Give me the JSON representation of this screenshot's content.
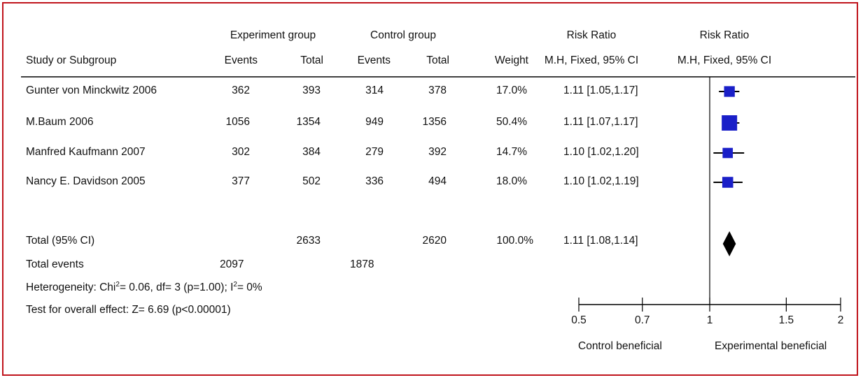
{
  "header": {
    "group1": "Experiment group",
    "group2": "Control group",
    "rr_text_title": "Risk Ratio",
    "rr_plot_title": "Risk Ratio",
    "col_study": "Study or Subgroup",
    "col_events1": "Events",
    "col_total1": "Total",
    "col_events2": "Events",
    "col_total2": "Total",
    "col_weight": "Weight",
    "col_method_text": "M.H, Fixed, 95% CI",
    "col_method_plot": "M.H, Fixed, 95% CI"
  },
  "studies": [
    {
      "name": "Gunter von Minckwitz 2006",
      "events1": "362",
      "total1": "393",
      "events2": "314",
      "total2": "378",
      "weight": "17.0%",
      "ci": "1.11 [1.05,1.17]"
    },
    {
      "name": "M.Baum 2006",
      "events1": "1056",
      "total1": "1354",
      "events2": "949",
      "total2": "1356",
      "weight": "50.4%",
      "ci": "1.11 [1.07,1.17]"
    },
    {
      "name": "Manfred Kaufmann 2007",
      "events1": "302",
      "total1": "384",
      "events2": "279",
      "total2": "392",
      "weight": "14.7%",
      "ci": "1.10 [1.02,1.20]"
    },
    {
      "name": "Nancy E. Davidson 2005",
      "events1": "377",
      "total1": "502",
      "events2": "336",
      "total2": "494",
      "weight": "18.0%",
      "ci": "1.10 [1.02,1.19]"
    }
  ],
  "total": {
    "label": "Total (95% CI)",
    "total1": "2633",
    "total2": "2620",
    "weight": "100.0%",
    "ci": "1.11 [1.08,1.14]"
  },
  "total_events": {
    "label": "Total events",
    "events1": "2097",
    "events2": "1878"
  },
  "heterogeneity": {
    "prefix": "Heterogeneity: Chi",
    "chi_sup": "2",
    "middle": "= 0.06, df= 3 (p=1.00); I",
    "i_sup": "2",
    "suffix": "= 0%"
  },
  "overall_effect": "Test for overall effect: Z= 6.69 (p<0.00001)",
  "axis": {
    "left_label": "Control beneficial",
    "right_label": "Experimental beneficial"
  },
  "colors": {
    "frame": "#c0141c",
    "marker": "#1a1fc8",
    "line": "#000000"
  },
  "chart_data": {
    "type": "forest",
    "scale": "log",
    "xlim": [
      0.5,
      2
    ],
    "reference": 1,
    "ticks": [
      0.5,
      0.7,
      1,
      1.5,
      2
    ],
    "tick_labels": [
      "0.5",
      "0.7",
      "1",
      "1.5",
      "2"
    ],
    "studies": [
      {
        "name": "Gunter von Minckwitz 2006",
        "rr": 1.11,
        "lo": 1.05,
        "hi": 1.17,
        "weight": 17.0
      },
      {
        "name": "M.Baum 2006",
        "rr": 1.11,
        "lo": 1.07,
        "hi": 1.17,
        "weight": 50.4
      },
      {
        "name": "Manfred Kaufmann 2007",
        "rr": 1.1,
        "lo": 1.02,
        "hi": 1.2,
        "weight": 14.7
      },
      {
        "name": "Nancy E. Davidson 2005",
        "rr": 1.1,
        "lo": 1.02,
        "hi": 1.19,
        "weight": 18.0
      }
    ],
    "pooled": {
      "rr": 1.11,
      "lo": 1.08,
      "hi": 1.14
    }
  }
}
